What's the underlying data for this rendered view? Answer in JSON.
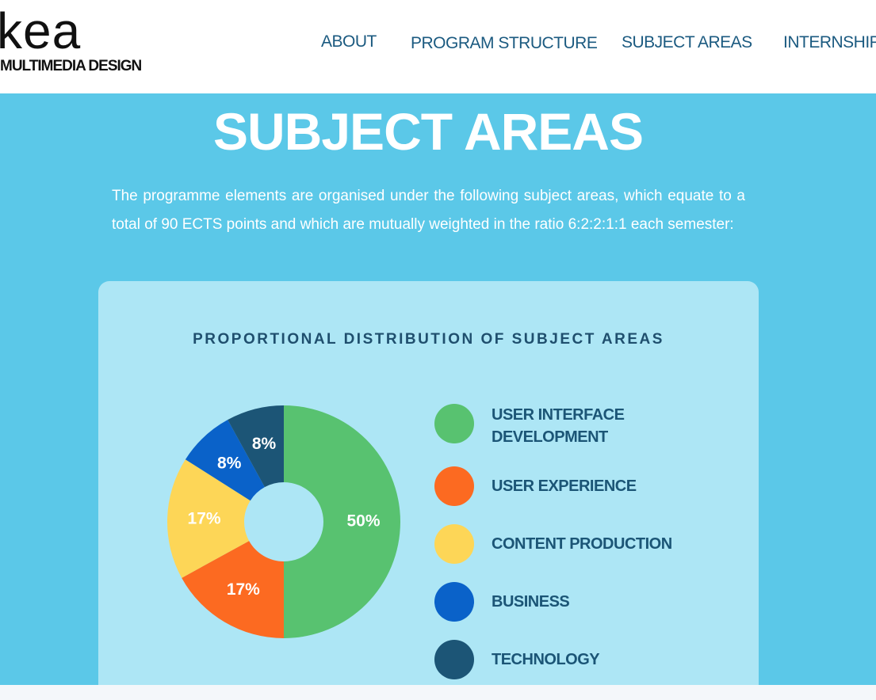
{
  "header": {
    "logo": "kea",
    "logo_subtitle": "MULTIMEDIA DESIGN"
  },
  "nav": [
    "ABOUT",
    "PROGRAM STRUCTURE",
    "SUBJECT AREAS",
    "INTERNSHIP"
  ],
  "title": "SUBJECT AREAS",
  "paragraph": "The programme elements are organised under the following subject areas, which equate to a total of 90 ECTS points and which are mutually weighted in the ratio 6:2:2:1:1 each semester:",
  "chart_data": {
    "type": "pie",
    "title": "PROPORTIONAL DISTRIBUTION OF SUBJECT AREAS",
    "categories": [
      "USER INTERFACE DEVELOPMENT",
      "USER EXPERIENCE",
      "CONTENT PRODUCTION",
      "BUSINESS",
      "TECHNOLOGY"
    ],
    "values": [
      50,
      17,
      17,
      8,
      8
    ],
    "value_labels": [
      "50%",
      "17%",
      "17%",
      "8%",
      "8%"
    ],
    "colors": [
      "#58c270",
      "#fc6a21",
      "#fdd657",
      "#0a62c9",
      "#1c5576"
    ],
    "donut": true
  }
}
